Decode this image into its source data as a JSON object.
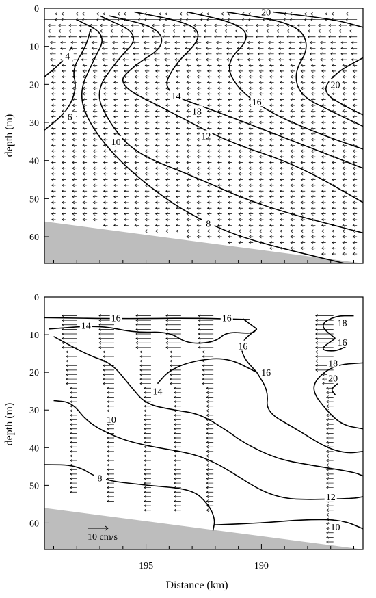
{
  "chart_data": [
    {
      "type": "contour",
      "panel": "top",
      "xlabel": "",
      "ylabel": "depth (m)",
      "xlim": [
        199.4,
        185.6
      ],
      "ylim": [
        0,
        67
      ],
      "x_ticks": [],
      "y_ticks": [
        0,
        10,
        20,
        30,
        40,
        50,
        60
      ],
      "bottom": {
        "x": [
          199.4,
          185.6
        ],
        "depth": [
          56,
          67
        ],
        "color": "#bdbdbd"
      },
      "vector_field": {
        "arrows": "dense",
        "x_columns": [
          199.0,
          198.55,
          198.1,
          197.65,
          197.2,
          196.75,
          196.3,
          195.85,
          195.4,
          194.95,
          194.5,
          194.05,
          193.6,
          193.15,
          192.7,
          192.25,
          191.8,
          191.35,
          190.9,
          190.45,
          190.0,
          189.55,
          189.1,
          188.65,
          188.2,
          187.75,
          187.3,
          186.85,
          186.4,
          185.95
        ],
        "depth_step": 1.5,
        "depth_start": 1.5
      },
      "contours": [
        {
          "level": "4",
          "points": [
            [
              198.2,
              10
            ],
            [
              198.6,
              14
            ],
            [
              199.4,
              18
            ]
          ],
          "label_at": [
            198.4,
            12.5
          ]
        },
        {
          "level": "6",
          "points": [
            [
              197.4,
              5.5
            ],
            [
              197.6,
              10
            ],
            [
              198.2,
              16
            ],
            [
              198.0,
              21
            ],
            [
              198.4,
              27
            ],
            [
              199.4,
              32
            ]
          ],
          "label_at": [
            198.3,
            28.5
          ]
        },
        {
          "level": "8",
          "points": [
            [
              198.0,
              3
            ],
            [
              196.7,
              7
            ],
            [
              197.3,
              14
            ],
            [
              197.9,
              22
            ],
            [
              197.5,
              30
            ],
            [
              196.2,
              40
            ],
            [
              194.2,
              50
            ],
            [
              192.5,
              56
            ],
            [
              190.5,
              61
            ],
            [
              186.4,
              67
            ]
          ],
          "label_at": [
            192.3,
            56.5
          ]
        },
        {
          "level": "10",
          "points": [
            [
              197.0,
              2
            ],
            [
              195.2,
              7
            ],
            [
              196.3,
              14
            ],
            [
              197.2,
              22
            ],
            [
              196.6,
              30
            ],
            [
              195.5,
              38
            ],
            [
              193.0,
              44
            ],
            [
              190.0,
              52
            ],
            [
              185.6,
              59
            ]
          ],
          "label_at": [
            196.3,
            35
          ]
        },
        {
          "level": "12",
          "points": [
            [
              196.6,
              2
            ],
            [
              194.5,
              5
            ],
            [
              194.2,
              10
            ],
            [
              195.5,
              15
            ],
            [
              196.3,
              20
            ],
            [
              194.0,
              27
            ],
            [
              191.5,
              35
            ],
            [
              188.5,
              41
            ],
            [
              185.6,
              51
            ]
          ],
          "label_at": [
            192.4,
            33.5
          ]
        },
        {
          "level": "14",
          "points": [
            [
              195.5,
              1
            ],
            [
              193.0,
              4
            ],
            [
              192.6,
              8
            ],
            [
              193.8,
              15
            ],
            [
              194.3,
              22
            ],
            [
              192.0,
              27
            ],
            [
              189.0,
              34
            ],
            [
              185.6,
              42
            ]
          ],
          "label_at": [
            193.7,
            23
          ]
        },
        {
          "level": "16",
          "points": [
            [
              193.2,
              1
            ],
            [
              191.0,
              4
            ],
            [
              190.5,
              8
            ],
            [
              191.5,
              14
            ],
            [
              191.2,
              20
            ],
            [
              189.8,
              27
            ],
            [
              187.5,
              33
            ],
            [
              185.6,
              37
            ]
          ],
          "label_at": [
            190.2,
            24.5
          ]
        },
        {
          "level": "18",
          "points": [
            [
              191.5,
              1
            ],
            [
              188.5,
              4
            ],
            [
              187.9,
              10
            ],
            [
              188.6,
              17
            ],
            [
              188.3,
              23
            ],
            [
              187.0,
              27
            ],
            [
              185.6,
              31
            ]
          ],
          "label_at": [
            192.8,
            27
          ]
        },
        {
          "level": "20",
          "points": [
            [
              189.5,
              1
            ],
            [
              186.8,
              3
            ],
            [
              185.6,
              5
            ]
          ],
          "label_at": [
            189.8,
            1
          ]
        },
        {
          "level": "20",
          "points": [
            [
              185.6,
              13
            ],
            [
              186.8,
              17
            ],
            [
              187.4,
              22
            ],
            [
              186.3,
              26
            ],
            [
              185.6,
              28
            ]
          ],
          "label_at": [
            186.8,
            20
          ]
        }
      ],
      "labels_shown": [
        "8",
        "10",
        "12",
        "14",
        "16",
        "18",
        "20",
        "6",
        "4",
        "4",
        "6",
        "12",
        "14",
        "16",
        "18",
        "20",
        "10",
        "8",
        "6"
      ]
    },
    {
      "type": "contour",
      "panel": "bottom",
      "xlabel": "Distance (km)",
      "ylabel": "depth (m)",
      "xlim": [
        199.4,
        185.6
      ],
      "ylim": [
        0,
        67
      ],
      "x_ticks": [
        195,
        190
      ],
      "y_ticks": [
        0,
        10,
        20,
        30,
        40,
        50,
        60
      ],
      "bottom": {
        "x": [
          199.4,
          185.6
        ],
        "depth": [
          56,
          67
        ],
        "color": "#bdbdbd"
      },
      "vector_field": {
        "stations": [
          198.1,
          196.5,
          194.9,
          193.6,
          192.2,
          187.0
        ],
        "depth_start": 5,
        "depth_step": 1.2,
        "depths_end": [
          52,
          55,
          57,
          57,
          57,
          67
        ]
      },
      "scale_arrow": {
        "label": "10 cm/s",
        "value_cm_s": 10
      },
      "contours": [
        {
          "level": "16",
          "points": [
            [
              199.4,
              5.5
            ],
            [
              196.0,
              5.8
            ],
            [
              193.0,
              5.6
            ],
            [
              190.5,
              6.0
            ]
          ],
          "label_at": [
            196.3,
            5.5
          ]
        },
        {
          "level": "16",
          "points": [
            [
              190.2,
              8.5
            ],
            [
              190.8,
              5.8
            ]
          ],
          "label_at": [
            191.5,
            5.5
          ]
        },
        {
          "level": "14",
          "points": [
            [
              199.2,
              8.5
            ],
            [
              197.0,
              7.5
            ],
            [
              195.5,
              9.5
            ],
            [
              194.0,
              9.2
            ],
            [
              193.2,
              12.5
            ],
            [
              192.0,
              12.0
            ],
            [
              191.5,
              9.2
            ],
            [
              190.4,
              9.8
            ],
            [
              190.2,
              8.5
            ]
          ],
          "label_at": [
            197.6,
            7.5
          ]
        },
        {
          "level": "16",
          "points": [
            [
              190.2,
              8.5
            ],
            [
              190.9,
              12.0
            ],
            [
              190.8,
              16.0
            ],
            [
              190.2,
              20.0
            ]
          ],
          "label_at": [
            190.8,
            13.0
          ]
        },
        {
          "level": "14",
          "points": [
            [
              190.2,
              20.0
            ],
            [
              191.5,
              16.0
            ],
            [
              193.0,
              17.0
            ],
            [
              194.0,
              19.5
            ],
            [
              194.5,
              23.0
            ]
          ],
          "label_at": [
            194.5,
            25.0
          ]
        },
        {
          "level": "16",
          "points": [
            [
              190.2,
              20.0
            ],
            [
              189.7,
              25.0
            ],
            [
              189.8,
              30.5
            ],
            [
              188.5,
              35.0
            ],
            [
              187.2,
              40.0
            ],
            [
              186.3,
              41.5
            ],
            [
              185.6,
              41.0
            ]
          ],
          "label_at": [
            189.8,
            20.0
          ]
        },
        {
          "level": "18",
          "points": [
            [
              186.8,
              11.0
            ],
            [
              187.5,
              7.5
            ],
            [
              186.8,
              5.0
            ],
            [
              186.0,
              5.0
            ]
          ],
          "label_at": [
            186.5,
            6.8
          ]
        },
        {
          "level": "16",
          "points": [
            [
              186.8,
              11.0
            ],
            [
              187.5,
              14.0
            ],
            [
              186.8,
              14.5
            ],
            [
              186.3,
              13.0
            ]
          ],
          "label_at": [
            186.5,
            12.0
          ]
        },
        {
          "level": "18",
          "points": [
            [
              185.6,
              17.5
            ],
            [
              186.8,
              18.0
            ],
            [
              187.6,
              21.5
            ],
            [
              187.8,
              25.0
            ],
            [
              187.2,
              30.0
            ],
            [
              186.5,
              34.0
            ],
            [
              185.6,
              35.0
            ]
          ],
          "label_at": [
            186.9,
            17.5
          ]
        },
        {
          "level": "20",
          "points": [
            [
              186.8,
              26.0
            ],
            [
              187.0,
              24.5
            ],
            [
              186.7,
              23.0
            ]
          ],
          "label_at": [
            186.9,
            21.5
          ]
        },
        {
          "level": "12",
          "points": [
            [
              199.0,
              10.5
            ],
            [
              197.5,
              15.5
            ],
            [
              196.5,
              17.5
            ],
            [
              195.7,
              23.5
            ],
            [
              195.0,
              28.5
            ],
            [
              193.8,
              30.0
            ],
            [
              192.7,
              31.0
            ],
            [
              191.6,
              35.0
            ],
            [
              190.7,
              39.0
            ],
            [
              189.3,
              43.0
            ],
            [
              188.0,
              44.5
            ],
            [
              186.0,
              46.5
            ],
            [
              185.6,
              47.5
            ]
          ],
          "label_at": [
            187.0,
            53.0
          ]
        },
        {
          "level": "10",
          "points": [
            [
              199.0,
              27.5
            ],
            [
              198.2,
              28.0
            ],
            [
              197.5,
              33.5
            ],
            [
              196.2,
              37.5
            ],
            [
              195.0,
              39.5
            ],
            [
              193.0,
              41.5
            ],
            [
              192.0,
              44.0
            ],
            [
              191.3,
              46.5
            ],
            [
              190.0,
              51.5
            ],
            [
              189.0,
              53.5
            ],
            [
              188.0,
              53.8
            ],
            [
              186.0,
              53.5
            ],
            [
              185.6,
              53.0
            ]
          ],
          "label_at": [
            186.8,
            61.0
          ]
        },
        {
          "level": "8",
          "points": [
            [
              199.4,
              44.5
            ],
            [
              198.0,
              44.6
            ],
            [
              197.0,
              48.5
            ],
            [
              195.0,
              50.0
            ],
            [
              193.0,
              51.0
            ],
            [
              192.3,
              55.0
            ],
            [
              192.0,
              59.0
            ],
            [
              192.1,
              62.0
            ]
          ],
          "label_at": [
            197.0,
            48.0
          ]
        },
        {
          "level": "10",
          "points": [
            [
              192.0,
              60.5
            ],
            [
              190.0,
              60.0
            ],
            [
              188.0,
              59.0
            ],
            [
              186.5,
              59.2
            ],
            [
              185.6,
              61.5
            ]
          ],
          "label_at": [
            196.5,
            32.5
          ]
        }
      ],
      "labels_shown": [
        "16",
        "16",
        "18",
        "14",
        "16",
        "12",
        "18",
        "20",
        "14",
        "10",
        "8",
        "12",
        "10"
      ]
    }
  ]
}
